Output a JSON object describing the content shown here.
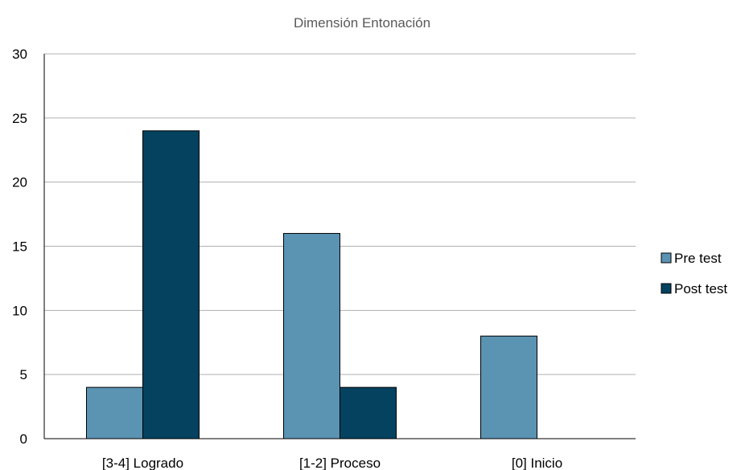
{
  "chart_data": {
    "type": "bar",
    "title": "Dimensión Entonación",
    "categories": [
      "[3-4] Logrado",
      "[1-2]  Proceso",
      "[0] Inicio"
    ],
    "series": [
      {
        "name": "Pre test",
        "values": [
          4,
          16,
          8
        ],
        "color": "#5b93b3"
      },
      {
        "name": "Post test",
        "values": [
          24,
          4,
          0
        ],
        "color": "#04425f"
      }
    ],
    "ylim": [
      0,
      30
    ],
    "yticks": [
      0,
      5,
      10,
      15,
      20,
      25,
      30
    ],
    "grid": true,
    "legend": "right"
  }
}
